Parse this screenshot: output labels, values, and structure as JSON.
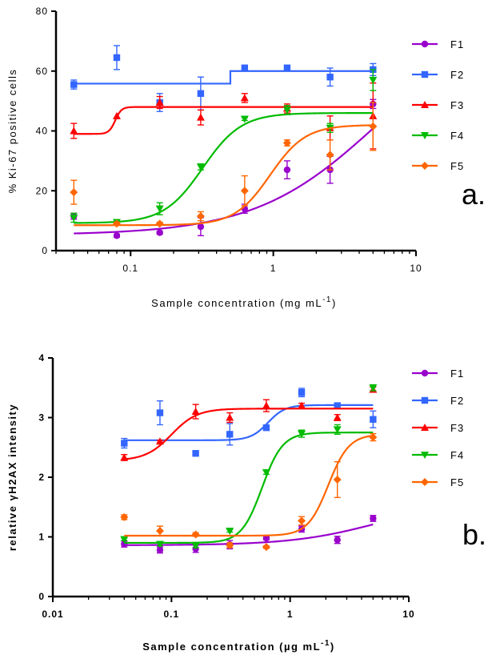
{
  "chart_data": [
    {
      "type": "scatter",
      "panel_label": "a.",
      "xscale": "log",
      "xlim": [
        0.03,
        10
      ],
      "ylim": [
        0,
        80
      ],
      "xlabel": "Sample concentration (mg mL",
      "xlabel_sup": "-1",
      "xlabel_tail": ")",
      "ylabel": "% Ki-67 positive cells",
      "xticks": [
        {
          "v": 0.1,
          "label": "0.1"
        },
        {
          "v": 1,
          "label": "1"
        },
        {
          "v": 10,
          "label": "10"
        }
      ],
      "yticks": [
        {
          "v": 0,
          "label": "0"
        },
        {
          "v": 20,
          "label": "20"
        },
        {
          "v": 40,
          "label": "40"
        },
        {
          "v": 60,
          "label": "60"
        },
        {
          "v": 80,
          "label": "80"
        }
      ],
      "legend_position": "right",
      "series": [
        {
          "name": "F1",
          "color": "#9900cc",
          "marker": "circle",
          "points": [
            [
              0.04,
              11.5,
              1
            ],
            [
              0.08,
              5,
              0.5
            ],
            [
              0.16,
              6,
              0.5
            ],
            [
              0.31,
              8,
              3
            ],
            [
              0.63,
              14,
              1.5
            ],
            [
              1.25,
              27,
              3
            ],
            [
              2.5,
              27,
              4.5
            ],
            [
              5,
              49,
              1.5
            ]
          ],
          "fit": {
            "kind": "sigmoid",
            "bottom": 5.2,
            "top": 80,
            "ec50": 5.5,
            "hill": 1.0
          }
        },
        {
          "name": "F2",
          "color": "#3366ff",
          "marker": "square",
          "points": [
            [
              0.04,
              55.5,
              1.5
            ],
            [
              0.08,
              64.5,
              4
            ],
            [
              0.16,
              49.5,
              3
            ],
            [
              0.31,
              52.5,
              5.5
            ],
            [
              0.63,
              61,
              1
            ],
            [
              1.25,
              61,
              1
            ],
            [
              2.5,
              58,
              3
            ],
            [
              5,
              60.5,
              2
            ]
          ],
          "fit": {
            "kind": "step",
            "bottom": 55.8,
            "top": 60,
            "ec50": 0.5
          }
        },
        {
          "name": "F3",
          "color": "#ff0000",
          "marker": "triangle",
          "points": [
            [
              0.04,
              40,
              2.5
            ],
            [
              0.08,
              45,
              0
            ],
            [
              0.16,
              49.5,
              2
            ],
            [
              0.31,
              44.5,
              2.5
            ],
            [
              0.63,
              51,
              1.5
            ],
            [
              1.25,
              47.5,
              1.5
            ],
            [
              2.5,
              41,
              4
            ],
            [
              5,
              45,
              11
            ]
          ],
          "fit": {
            "kind": "sigmoid",
            "bottom": 39,
            "top": 48,
            "ec50": 0.078,
            "hill": 20
          }
        },
        {
          "name": "F4",
          "color": "#00bb00",
          "marker": "triangle-down",
          "points": [
            [
              0.04,
              11,
              1.5
            ],
            [
              0.08,
              9.5,
              0.5
            ],
            [
              0.16,
              14,
              2
            ],
            [
              0.31,
              28,
              1
            ],
            [
              0.63,
              44,
              0.5
            ],
            [
              1.25,
              47,
              1.5
            ],
            [
              2.5,
              41,
              1.5
            ],
            [
              5,
              57,
              3.5
            ]
          ],
          "fit": {
            "kind": "sigmoid",
            "bottom": 9.2,
            "top": 46,
            "ec50": 0.32,
            "hill": 3.2
          }
        },
        {
          "name": "F5",
          "color": "#ff6600",
          "marker": "diamond",
          "points": [
            [
              0.04,
              19.5,
              4
            ],
            [
              0.08,
              9,
              0.5
            ],
            [
              0.16,
              9,
              0.5
            ],
            [
              0.31,
              11.5,
              1.5
            ],
            [
              0.63,
              20,
              5
            ],
            [
              1.25,
              36,
              1
            ],
            [
              2.5,
              32,
              5
            ],
            [
              5,
              41.5,
              8
            ]
          ],
          "fit": {
            "kind": "sigmoid",
            "bottom": 8.5,
            "top": 42,
            "ec50": 0.95,
            "hill": 3.5
          }
        }
      ]
    },
    {
      "type": "scatter",
      "panel_label": "b.",
      "xscale": "log",
      "xlim": [
        0.01,
        10
      ],
      "ylim": [
        0,
        4
      ],
      "xlabel": "Sample concentration (µg mL",
      "xlabel_sup": "-1",
      "xlabel_tail": ")",
      "ylabel": "relative  γH2AX intensity",
      "xticks": [
        {
          "v": 0.01,
          "label": "0.01"
        },
        {
          "v": 0.1,
          "label": "0.1"
        },
        {
          "v": 1,
          "label": "1"
        },
        {
          "v": 10,
          "label": "10"
        }
      ],
      "yticks": [
        {
          "v": 0,
          "label": "0"
        },
        {
          "v": 1,
          "label": "1"
        },
        {
          "v": 2,
          "label": "2"
        },
        {
          "v": 3,
          "label": "3"
        },
        {
          "v": 4,
          "label": "4"
        }
      ],
      "legend_position": "right",
      "series": [
        {
          "name": "F1",
          "color": "#9900cc",
          "marker": "circle",
          "points": [
            [
              0.04,
              0.88,
              0.05
            ],
            [
              0.08,
              0.78,
              0.05
            ],
            [
              0.16,
              0.8,
              0.06
            ],
            [
              0.31,
              0.87,
              0.07
            ],
            [
              0.63,
              0.98,
              0.03
            ],
            [
              1.25,
              1.13,
              0.05
            ],
            [
              2.5,
              0.95,
              0.06
            ],
            [
              5,
              1.31,
              0.05
            ]
          ],
          "fit": {
            "kind": "sigmoid",
            "bottom": 0.86,
            "top": 1.6,
            "ec50": 5.5,
            "hill": 1.2
          }
        },
        {
          "name": "F2",
          "color": "#3366ff",
          "marker": "square",
          "points": [
            [
              0.04,
              2.57,
              0.08
            ],
            [
              0.08,
              3.08,
              0.2
            ],
            [
              0.16,
              2.4,
              0
            ],
            [
              0.31,
              2.72,
              0.18
            ],
            [
              0.63,
              2.83,
              0.03
            ],
            [
              1.25,
              3.42,
              0.07
            ],
            [
              2.5,
              3.2,
              0.04
            ],
            [
              5,
              2.97,
              0.14
            ]
          ],
          "fit": {
            "kind": "sigmoid",
            "bottom": 2.62,
            "top": 3.21,
            "ec50": 0.65,
            "hill": 6
          }
        },
        {
          "name": "F3",
          "color": "#ff0000",
          "marker": "triangle",
          "points": [
            [
              0.04,
              2.33,
              0.05
            ],
            [
              0.08,
              2.6,
              0.02
            ],
            [
              0.16,
              3.1,
              0.12
            ],
            [
              0.31,
              3.0,
              0.08
            ],
            [
              0.63,
              3.2,
              0.1
            ],
            [
              1.25,
              3.2,
              0.04
            ],
            [
              2.5,
              3.0,
              0.05
            ],
            [
              5,
              3.47,
              0.04
            ]
          ],
          "fit": {
            "kind": "sigmoid",
            "bottom": 2.28,
            "top": 3.15,
            "ec50": 0.1,
            "hill": 4
          }
        },
        {
          "name": "F4",
          "color": "#00bb00",
          "marker": "triangle-down",
          "points": [
            [
              0.04,
              0.96,
              0.02
            ],
            [
              0.08,
              0.88,
              0.03
            ],
            [
              0.16,
              0.85,
              0.03
            ],
            [
              0.31,
              1.1,
              0.02
            ],
            [
              0.63,
              2.08,
              0.03
            ],
            [
              1.25,
              2.73,
              0.06
            ],
            [
              2.5,
              2.8,
              0.08
            ],
            [
              5,
              3.5,
              0.05
            ]
          ],
          "fit": {
            "kind": "sigmoid",
            "bottom": 0.9,
            "top": 2.75,
            "ec50": 0.58,
            "hill": 5
          }
        },
        {
          "name": "F5",
          "color": "#ff6600",
          "marker": "diamond",
          "points": [
            [
              0.04,
              1.33,
              0.04
            ],
            [
              0.08,
              1.1,
              0.08
            ],
            [
              0.16,
              1.04,
              0.03
            ],
            [
              0.31,
              0.86,
              0.04
            ],
            [
              0.63,
              0.83,
              0.02
            ],
            [
              1.25,
              1.27,
              0.07
            ],
            [
              2.5,
              1.96,
              0.3
            ],
            [
              5,
              2.67,
              0.06
            ]
          ],
          "fit": {
            "kind": "sigmoid",
            "bottom": 1.02,
            "top": 2.72,
            "ec50": 2.1,
            "hill": 5
          }
        }
      ]
    }
  ]
}
